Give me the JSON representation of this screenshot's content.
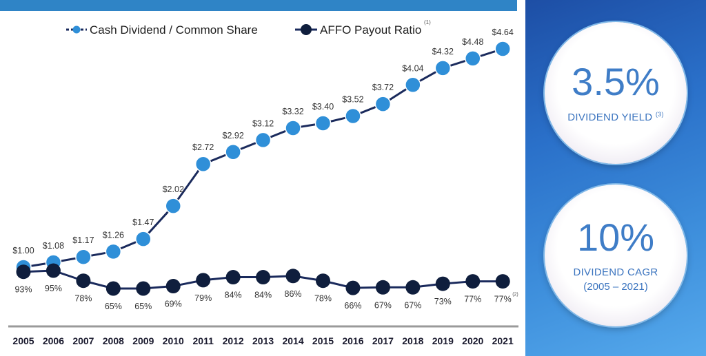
{
  "chart_data": {
    "type": "line",
    "categories": [
      "2005",
      "2006",
      "2007",
      "2008",
      "2009",
      "2010",
      "2011",
      "2012",
      "2013",
      "2014",
      "2015",
      "2016",
      "2017",
      "2018",
      "2019",
      "2020",
      "2021"
    ],
    "series": [
      {
        "name": "Cash Dividend / Common Share",
        "values": [
          1.0,
          1.08,
          1.17,
          1.26,
          1.47,
          2.02,
          2.72,
          2.92,
          3.12,
          3.32,
          3.4,
          3.52,
          3.72,
          4.04,
          4.32,
          4.48,
          4.64
        ],
        "labels": [
          "$1.00",
          "$1.08",
          "$1.17",
          "$1.26",
          "$1.47",
          "$2.02",
          "$2.72",
          "$2.92",
          "$3.12",
          "$3.32",
          "$3.40",
          "$3.52",
          "$3.72",
          "$4.04",
          "$4.32",
          "$4.48",
          "$4.64"
        ],
        "color": "#2f8fd8"
      },
      {
        "name": "AFFO Payout Ratio",
        "superscript": "(1)",
        "values": [
          93,
          95,
          78,
          65,
          65,
          69,
          79,
          84,
          84,
          86,
          78,
          66,
          67,
          67,
          73,
          77,
          77
        ],
        "labels": [
          "93%",
          "95%",
          "78%",
          "65%",
          "65%",
          "69%",
          "79%",
          "84%",
          "84%",
          "86%",
          "78%",
          "66%",
          "67%",
          "67%",
          "73%",
          "77%",
          "77%"
        ],
        "last_label_note": "(2)",
        "color": "#0f1e3d"
      }
    ],
    "line_color": "#1a2a5c",
    "grid": false,
    "legend": "top"
  },
  "panel": {
    "yield_value": "3.5%",
    "yield_label": "DIVIDEND YIELD",
    "yield_note": "(3)",
    "cagr_value": "10%",
    "cagr_label": "DIVIDEND CAGR",
    "cagr_period": "(2005 – 2021)"
  }
}
